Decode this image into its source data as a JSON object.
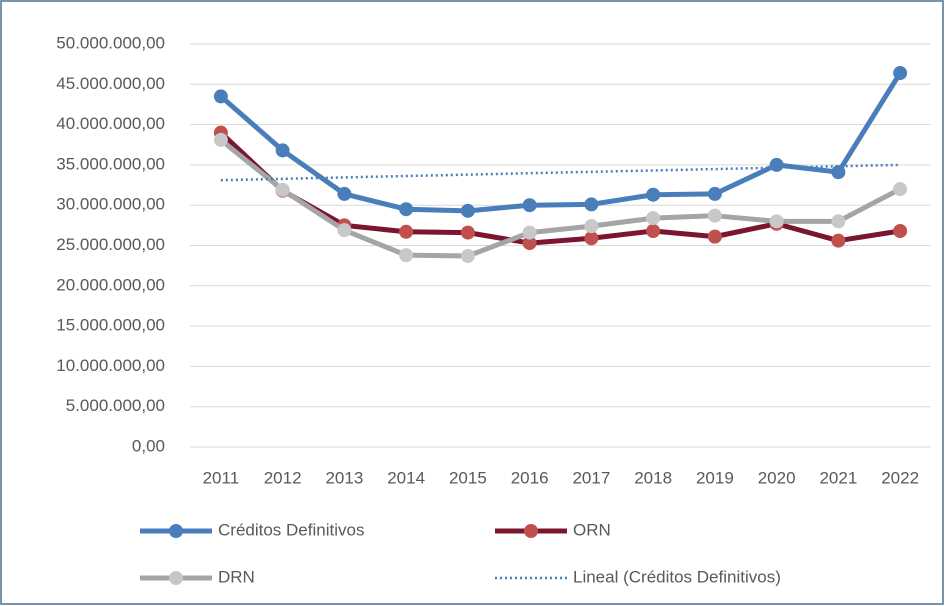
{
  "chart_data": {
    "type": "line",
    "categories": [
      "2011",
      "2012",
      "2013",
      "2014",
      "2015",
      "2016",
      "2017",
      "2018",
      "2019",
      "2020",
      "2021",
      "2022"
    ],
    "series": [
      {
        "name": "Créditos Definitivos",
        "color": "#4a7ebb",
        "marker": true,
        "dash": "solid",
        "values": [
          43500000,
          36800000,
          31400000,
          29500000,
          29300000,
          30000000,
          30100000,
          31300000,
          31400000,
          35000000,
          34100000,
          46400000
        ]
      },
      {
        "name": "ORN",
        "color": "#7b1530",
        "marker_color": "#c0504d",
        "marker": true,
        "dash": "solid",
        "values": [
          39000000,
          31800000,
          27500000,
          26700000,
          26600000,
          25300000,
          25900000,
          26800000,
          26100000,
          27700000,
          25600000,
          26800000
        ]
      },
      {
        "name": "DRN",
        "color": "#a5a5a5",
        "marker_color": "#c8c8c8",
        "marker": true,
        "dash": "solid",
        "values": [
          38100000,
          31900000,
          26900000,
          23800000,
          23700000,
          26600000,
          27400000,
          28400000,
          28700000,
          28000000,
          28000000,
          32000000
        ]
      },
      {
        "name": "Lineal (Créditos Definitivos)",
        "color": "#4a7ebb",
        "marker": false,
        "dash": "dotted",
        "values": [
          33100000,
          33270000,
          33450000,
          33620000,
          33790000,
          33970000,
          34140000,
          34310000,
          34480000,
          34660000,
          34830000,
          35000000
        ]
      }
    ],
    "ylim": [
      0,
      50000000
    ],
    "yticks": [
      {
        "value": 0,
        "label": "0,00"
      },
      {
        "value": 5000000,
        "label": "5.000.000,00"
      },
      {
        "value": 10000000,
        "label": "10.000.000,00"
      },
      {
        "value": 15000000,
        "label": "15.000.000,00"
      },
      {
        "value": 20000000,
        "label": "20.000.000,00"
      },
      {
        "value": 25000000,
        "label": "25.000.000,00"
      },
      {
        "value": 30000000,
        "label": "30.000.000,00"
      },
      {
        "value": 35000000,
        "label": "35.000.000,00"
      },
      {
        "value": 40000000,
        "label": "40.000.000,00"
      },
      {
        "value": 45000000,
        "label": "45.000.000,00"
      },
      {
        "value": 50000000,
        "label": "50.000.000,00"
      }
    ],
    "grid": true,
    "legend": "bottom"
  }
}
